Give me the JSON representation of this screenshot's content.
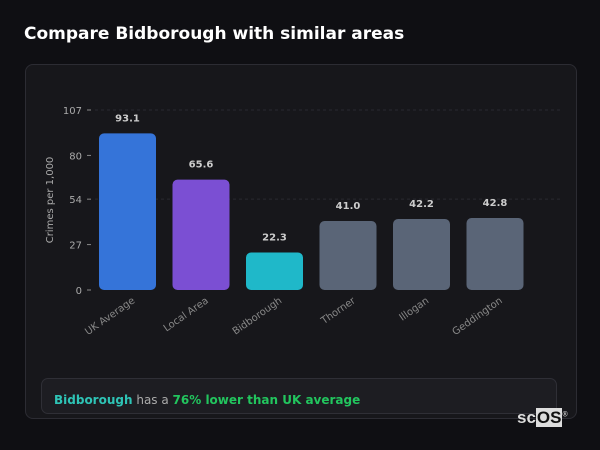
{
  "title": "Compare Bidborough with similar areas",
  "chart_data": {
    "type": "bar",
    "ylabel": "Crimes per 1,000",
    "ylim": [
      0,
      107
    ],
    "yticks": [
      0,
      27,
      54,
      80,
      107
    ],
    "categories": [
      "UK Average",
      "Local Area",
      "Bidborough",
      "Thorner",
      "Illogan",
      "Geddington"
    ],
    "values": [
      93.1,
      65.6,
      22.3,
      41.0,
      42.2,
      42.8
    ],
    "value_labels": [
      "93.1",
      "65.6",
      "22.3",
      "41.0",
      "42.2",
      "42.8"
    ],
    "colors": [
      "#3574d9",
      "#7b4fd3",
      "#1fb8c9",
      "#5a6577",
      "#5a6577",
      "#5a6577"
    ],
    "grid": "dashed at 54 and 107"
  },
  "summary": {
    "area": "Bidborough",
    "middle": " has a ",
    "comparison": "76% lower than UK average"
  },
  "logo": {
    "text_a": "sc",
    "text_b": "OS",
    "mark": "®"
  }
}
